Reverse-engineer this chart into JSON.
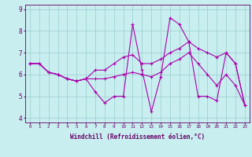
{
  "title": "",
  "xlabel": "Windchill (Refroidissement éolien,°C)",
  "ylabel": "",
  "background_color": "#c8eef0",
  "line_color": "#aa00aa",
  "grid_color": "#99cccc",
  "xlim": [
    -0.5,
    23.5
  ],
  "ylim": [
    3.8,
    9.2
  ],
  "xticks": [
    0,
    1,
    2,
    3,
    4,
    5,
    6,
    7,
    8,
    9,
    10,
    11,
    12,
    13,
    14,
    15,
    16,
    17,
    18,
    19,
    20,
    21,
    22,
    23
  ],
  "yticks": [
    4,
    5,
    6,
    7,
    8,
    9
  ],
  "series": [
    [
      6.5,
      6.5,
      6.1,
      6.0,
      5.8,
      5.7,
      5.8,
      5.2,
      4.7,
      5.0,
      5.0,
      8.3,
      6.2,
      4.3,
      5.9,
      8.6,
      8.3,
      7.5,
      5.0,
      5.0,
      4.8,
      7.0,
      6.5,
      4.6
    ],
    [
      6.5,
      6.5,
      6.1,
      6.0,
      5.8,
      5.7,
      5.8,
      6.2,
      6.2,
      6.5,
      6.8,
      6.9,
      6.5,
      6.5,
      6.7,
      7.0,
      7.2,
      7.5,
      7.2,
      7.0,
      6.8,
      7.0,
      6.5,
      4.6
    ],
    [
      6.5,
      6.5,
      6.1,
      6.0,
      5.8,
      5.7,
      5.8,
      5.8,
      5.8,
      5.9,
      6.0,
      6.1,
      6.0,
      5.9,
      6.1,
      6.5,
      6.7,
      7.0,
      6.5,
      6.0,
      5.5,
      6.0,
      5.5,
      4.6
    ]
  ],
  "marker": "+",
  "markersize": 3,
  "linewidth": 0.8,
  "axis_color": "#660066",
  "tick_color": "#660066",
  "label_color": "#660066",
  "xlabel_fontsize": 5.5,
  "xtick_fontsize": 4.2,
  "ytick_fontsize": 5.5
}
